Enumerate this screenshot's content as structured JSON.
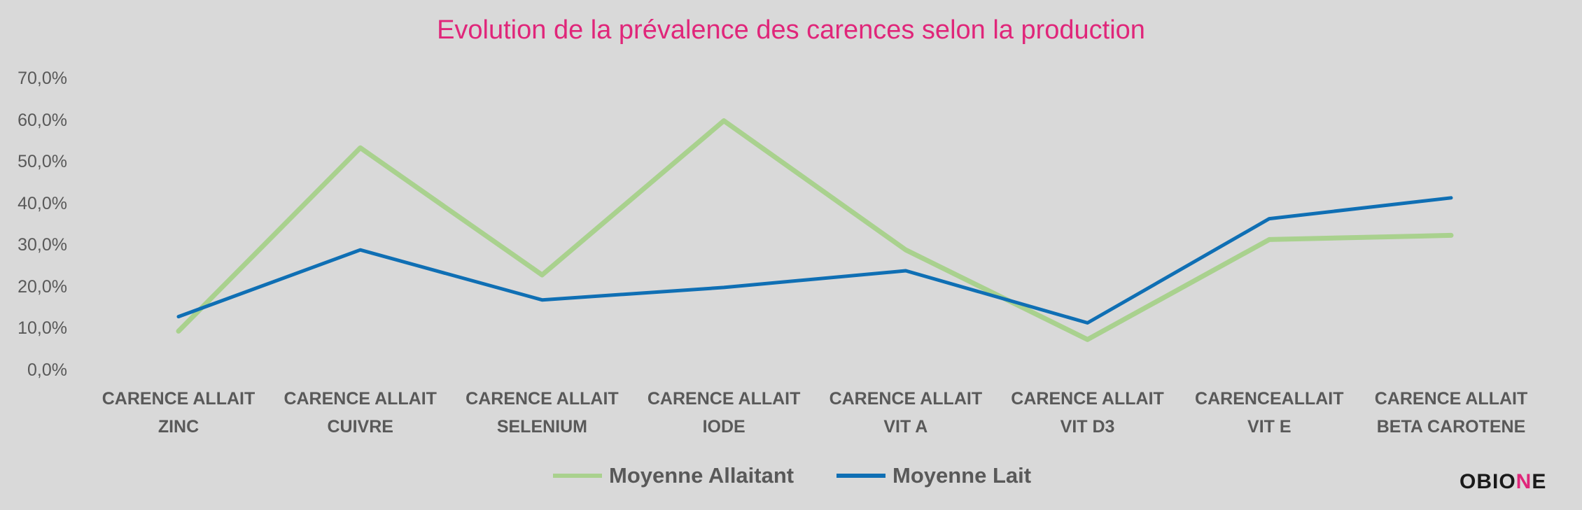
{
  "chart_data": {
    "type": "line",
    "title": "Evolution  de la prévalence des carences selon la production",
    "xlabel": "",
    "ylabel": "",
    "ylim": [
      0,
      70
    ],
    "y_ticks": [
      "0,0%",
      "10,0%",
      "20,0%",
      "30,0%",
      "40,0%",
      "50,0%",
      "60,0%",
      "70,0%"
    ],
    "grid": false,
    "legend_position": "bottom",
    "categories": [
      [
        "CARENCE ALLAIT",
        "ZINC"
      ],
      [
        "CARENCE ALLAIT",
        "CUIVRE"
      ],
      [
        "CARENCE  ALLAIT",
        "SELENIUM"
      ],
      [
        "CARENCE ALLAIT",
        "IODE"
      ],
      [
        "CARENCE ALLAIT",
        "VIT A"
      ],
      [
        "CARENCE ALLAIT",
        "VIT D3"
      ],
      [
        "CARENCEALLAIT",
        "VIT E"
      ],
      [
        "CARENCE ALLAIT",
        "BETA CAROTENE"
      ]
    ],
    "series": [
      {
        "name": "Moyenne Allaitant",
        "color": "#a9d18e",
        "values": [
          9.5,
          53.5,
          23,
          60,
          29,
          7.5,
          31.5,
          32.5
        ]
      },
      {
        "name": "Moyenne Lait",
        "color": "#0f6fb4",
        "values": [
          13,
          29,
          17,
          20,
          24,
          11.5,
          36.5,
          41.5
        ]
      }
    ]
  },
  "logo": {
    "text_main": "OBIO",
    "text_accent": "N",
    "text_end": "E"
  }
}
